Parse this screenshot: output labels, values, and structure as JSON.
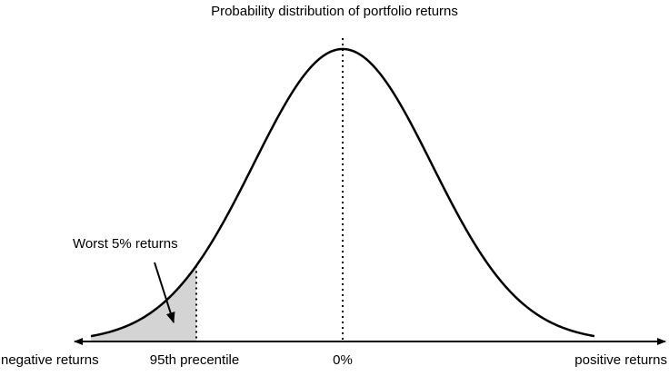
{
  "title": "Probability distribution of portfolio returns",
  "annotation": "Worst 5% returns",
  "axis_labels": {
    "left": "negative returns",
    "percentile": "95th precentile",
    "center": "0%",
    "right": "positive returns"
  }
}
